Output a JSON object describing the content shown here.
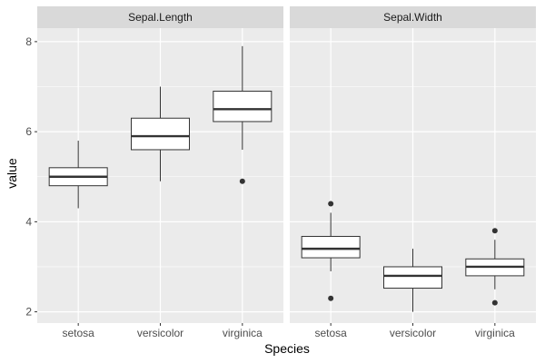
{
  "chart_data": {
    "type": "boxplot",
    "xlabel": "Species",
    "ylabel": "value",
    "ylim": [
      1.75,
      8.3
    ],
    "yticks": [
      2,
      4,
      6,
      8
    ],
    "categories": [
      "setosa",
      "versicolor",
      "virginica"
    ],
    "grid": true,
    "panels": [
      {
        "title": "Sepal.Length",
        "boxes": [
          {
            "category": "setosa",
            "whisker_low": 4.3,
            "q1": 4.8,
            "median": 5.0,
            "q3": 5.2,
            "whisker_high": 5.8,
            "outliers": []
          },
          {
            "category": "versicolor",
            "whisker_low": 4.9,
            "q1": 5.6,
            "median": 5.9,
            "q3": 6.3,
            "whisker_high": 7.0,
            "outliers": []
          },
          {
            "category": "virginica",
            "whisker_low": 5.6,
            "q1": 6.225,
            "median": 6.5,
            "q3": 6.9,
            "whisker_high": 7.9,
            "outliers": [
              4.9
            ]
          }
        ]
      },
      {
        "title": "Sepal.Width",
        "boxes": [
          {
            "category": "setosa",
            "whisker_low": 2.9,
            "q1": 3.2,
            "median": 3.4,
            "q3": 3.675,
            "whisker_high": 4.2,
            "outliers": [
              4.4,
              2.3
            ]
          },
          {
            "category": "versicolor",
            "whisker_low": 2.0,
            "q1": 2.525,
            "median": 2.8,
            "q3": 3.0,
            "whisker_high": 3.4,
            "outliers": []
          },
          {
            "category": "virginica",
            "whisker_low": 2.5,
            "q1": 2.8,
            "median": 3.0,
            "q3": 3.175,
            "whisker_high": 3.6,
            "outliers": [
              3.8,
              2.2
            ]
          }
        ]
      }
    ]
  },
  "colors": {
    "panel_background": "#EBEBEB",
    "strip_background": "#D9D9D9",
    "grid_line": "#FFFFFF",
    "box_fill": "#FFFFFF",
    "box_stroke": "#333333",
    "tick_mark": "#333333"
  }
}
